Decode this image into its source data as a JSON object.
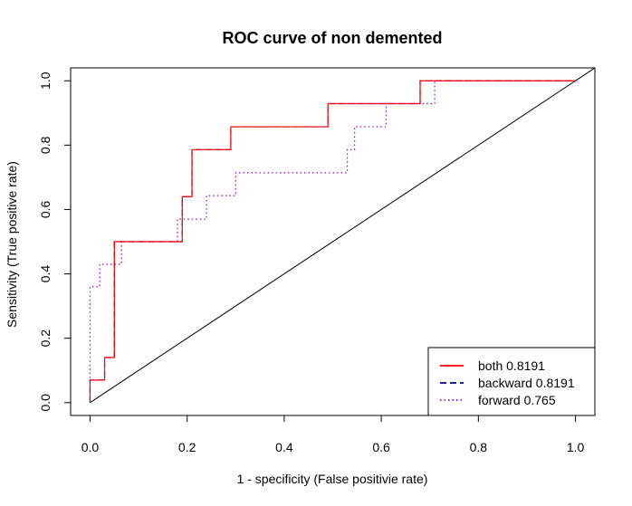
{
  "chart_data": {
    "type": "line",
    "title": "ROC curve of non demented",
    "xlabel": "1 - specificity (False positivie rate)",
    "ylabel": "Sensitivity (True positive rate)",
    "xlim": [
      -0.04,
      1.04
    ],
    "ylim": [
      -0.04,
      1.04
    ],
    "xticks": [
      "0.0",
      "0.2",
      "0.4",
      "0.6",
      "0.8",
      "1.0"
    ],
    "yticks": [
      "0.0",
      "0.2",
      "0.4",
      "0.6",
      "0.8",
      "1.0"
    ],
    "xtick_values": [
      0,
      0.2,
      0.4,
      0.6,
      0.8,
      1.0
    ],
    "ytick_values": [
      0,
      0.2,
      0.4,
      0.6,
      0.8,
      1.0
    ],
    "grid": false,
    "legend_position": "bottom-right",
    "series": [
      {
        "name": "both 0.8191",
        "color": "#ff0000",
        "style": "solid",
        "x": [
          0,
          0,
          0.03,
          0.03,
          0.05,
          0.05,
          0.19,
          0.19,
          0.21,
          0.21,
          0.29,
          0.29,
          0.49,
          0.49,
          0.68,
          0.68,
          1.0
        ],
        "y": [
          0,
          0.07,
          0.07,
          0.14,
          0.14,
          0.5,
          0.5,
          0.64,
          0.64,
          0.786,
          0.786,
          0.857,
          0.857,
          0.929,
          0.929,
          1.0,
          1.0
        ]
      },
      {
        "name": "backward 0.8191",
        "color": "#00008b",
        "style": "dashed",
        "x": [
          0,
          0,
          0.03,
          0.03,
          0.05,
          0.05,
          0.19,
          0.19,
          0.21,
          0.21,
          0.29,
          0.29,
          0.49,
          0.49,
          0.68,
          0.68,
          1.0
        ],
        "y": [
          0,
          0.07,
          0.07,
          0.14,
          0.14,
          0.5,
          0.5,
          0.64,
          0.64,
          0.786,
          0.786,
          0.857,
          0.857,
          0.929,
          0.929,
          1.0,
          1.0
        ]
      },
      {
        "name": "forward 0.765",
        "color": "#9400d3",
        "style": "dotted",
        "x": [
          0,
          0,
          0.02,
          0.02,
          0.035,
          0.035,
          0.05,
          0.05,
          0.065,
          0.065,
          0.18,
          0.18,
          0.24,
          0.24,
          0.3,
          0.3,
          0.53,
          0.53,
          0.545,
          0.545,
          0.61,
          0.61,
          0.71,
          0.71,
          1.0
        ],
        "y": [
          0,
          0.36,
          0.36,
          0.43,
          0.43,
          0.43,
          0.43,
          0.43,
          0.43,
          0.5,
          0.5,
          0.57,
          0.57,
          0.643,
          0.643,
          0.714,
          0.714,
          0.786,
          0.786,
          0.857,
          0.857,
          0.929,
          0.929,
          1.0,
          1.0
        ]
      },
      {
        "name": "",
        "color": "#000000",
        "style": "solid",
        "x": [
          0,
          1.04
        ],
        "y": [
          0,
          1.04
        ]
      }
    ]
  }
}
